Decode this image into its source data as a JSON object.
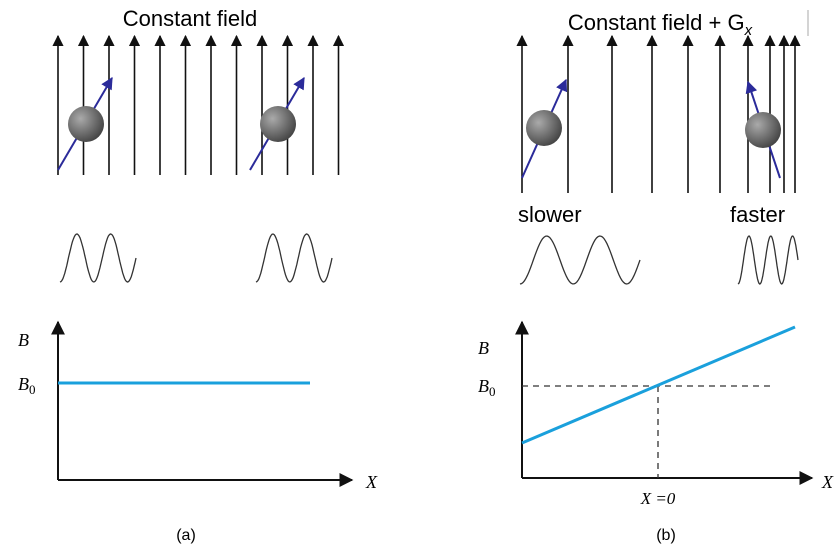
{
  "panels": [
    {
      "title": "Constant field",
      "y_axis_label": "B",
      "level_label": {
        "main": "B",
        "sub": "0"
      },
      "x_axis_label": "X",
      "caption": "(a)"
    },
    {
      "title": {
        "main": "Constant field + G",
        "sub": "x"
      },
      "speed_labels": [
        "slower",
        "faster"
      ],
      "y_axis_label": "B",
      "level_label": {
        "main": "B",
        "sub": "0"
      },
      "x_axis_label": "X",
      "origin_label": "X =0",
      "caption": "(b)"
    }
  ]
}
